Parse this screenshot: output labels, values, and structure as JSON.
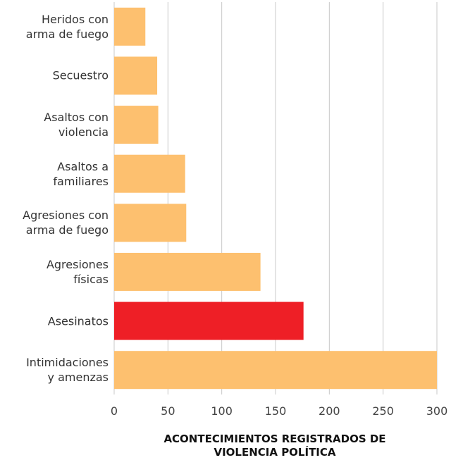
{
  "chart_data": {
    "type": "hbar",
    "title": "ACONTECIMIENTOS REGISTRADOS DE\nVIOLENCIA POLÍTICA",
    "categories": [
      "Heridos con\narma de fuego",
      "Secuestro",
      "Asaltos con\nviolencia",
      "Asaltos a\nfamiliares",
      "Agresiones con\narma de fuego",
      "Agresiones\nfísicas",
      "Asesinatos",
      "Intimidaciones\ny amenzas"
    ],
    "values": [
      29,
      40,
      41,
      66,
      67,
      136,
      176,
      300
    ],
    "colors": [
      "#fdc06f",
      "#fdc06f",
      "#fdc06f",
      "#fdc06f",
      "#fdc06f",
      "#fdc06f",
      "#ee1f26",
      "#fdc06f"
    ],
    "xlim": [
      0,
      300
    ],
    "xticks": [
      0,
      50,
      100,
      150,
      200,
      250,
      300
    ],
    "grid": true
  }
}
